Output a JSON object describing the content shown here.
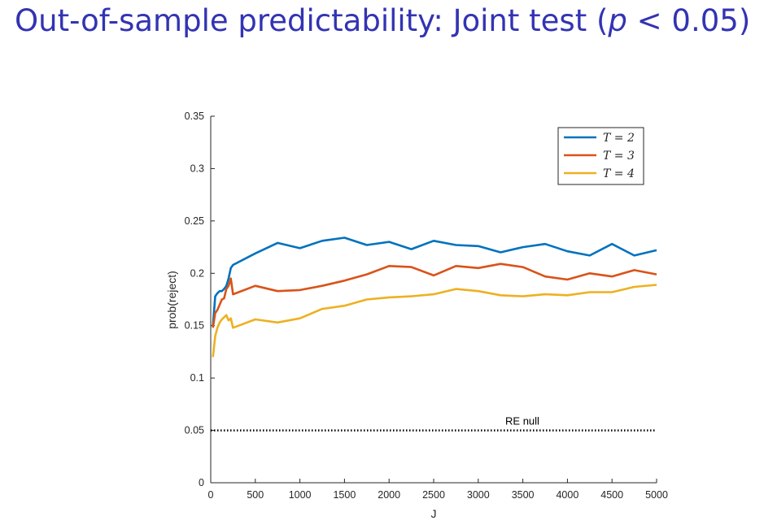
{
  "slide": {
    "title_prefix": "Out-of-sample predictability: Joint test (",
    "title_var": "p",
    "title_suffix": " < 0.05)"
  },
  "chart_data": {
    "type": "line",
    "xlabel": "J",
    "ylabel": "prob(reject)",
    "xlim": [
      0,
      5000
    ],
    "ylim": [
      0,
      0.35
    ],
    "x_ticks": [
      "0",
      "500",
      "1000",
      "1500",
      "2000",
      "2500",
      "3000",
      "3500",
      "4000",
      "4500",
      "5000"
    ],
    "y_ticks": [
      "0",
      "0.05",
      "0.1",
      "0.15",
      "0.2",
      "0.25",
      "0.3",
      "0.35"
    ],
    "grid": false,
    "legend_position": "top-right",
    "series": [
      {
        "name": "T = 2",
        "color": "#0072bd",
        "x": [
          25,
          50,
          75,
          100,
          125,
          150,
          175,
          200,
          225,
          250,
          500,
          750,
          1000,
          1250,
          1500,
          1750,
          2000,
          2250,
          2500,
          2750,
          3000,
          3250,
          3500,
          3750,
          4000,
          4250,
          4500,
          4750,
          5000
        ],
        "y": [
          0.15,
          0.178,
          0.181,
          0.183,
          0.183,
          0.185,
          0.188,
          0.195,
          0.205,
          0.208,
          0.219,
          0.229,
          0.224,
          0.231,
          0.234,
          0.227,
          0.23,
          0.223,
          0.231,
          0.227,
          0.226,
          0.22,
          0.225,
          0.228,
          0.221,
          0.217,
          0.228,
          0.217,
          0.222
        ]
      },
      {
        "name": "T = 3",
        "color": "#d95319",
        "x": [
          25,
          50,
          75,
          100,
          125,
          150,
          175,
          200,
          225,
          250,
          500,
          750,
          1000,
          1250,
          1500,
          1750,
          2000,
          2250,
          2500,
          2750,
          3000,
          3250,
          3500,
          3750,
          4000,
          4250,
          4500,
          4750,
          5000
        ],
        "y": [
          0.148,
          0.162,
          0.165,
          0.17,
          0.175,
          0.176,
          0.185,
          0.188,
          0.195,
          0.18,
          0.188,
          0.183,
          0.184,
          0.188,
          0.193,
          0.199,
          0.207,
          0.206,
          0.198,
          0.207,
          0.205,
          0.209,
          0.206,
          0.197,
          0.194,
          0.2,
          0.197,
          0.203,
          0.199
        ]
      },
      {
        "name": "T = 4",
        "color": "#edb120",
        "x": [
          25,
          50,
          75,
          100,
          125,
          150,
          175,
          200,
          225,
          250,
          500,
          750,
          1000,
          1250,
          1500,
          1750,
          2000,
          2250,
          2500,
          2750,
          3000,
          3250,
          3500,
          3750,
          4000,
          4250,
          4500,
          4750,
          5000
        ],
        "y": [
          0.12,
          0.14,
          0.148,
          0.153,
          0.156,
          0.158,
          0.16,
          0.155,
          0.157,
          0.148,
          0.156,
          0.153,
          0.157,
          0.166,
          0.169,
          0.175,
          0.177,
          0.178,
          0.18,
          0.185,
          0.183,
          0.179,
          0.178,
          0.18,
          0.179,
          0.182,
          0.182,
          0.187,
          0.189
        ]
      }
    ],
    "reference_line": {
      "label": "RE null",
      "y": 0.05,
      "color": "#000000",
      "style": "dotted"
    }
  }
}
